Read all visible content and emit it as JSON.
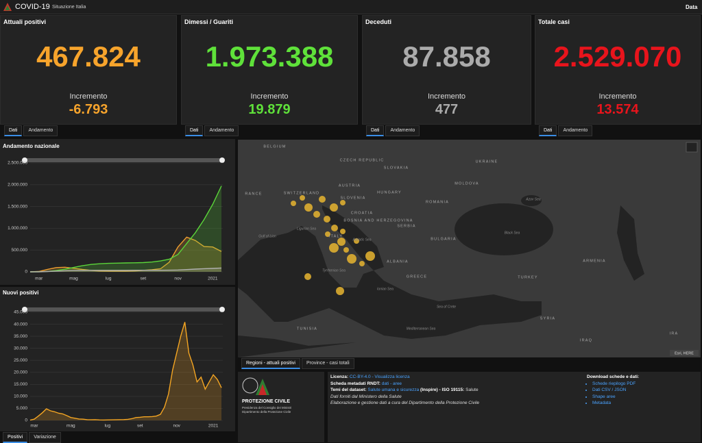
{
  "header": {
    "title": "COVID-19",
    "subtitle": "Situazione Italia",
    "date_label": "Data"
  },
  "cards": [
    {
      "title": "Attuali positivi",
      "value": "467.824",
      "increment_label": "Incremento",
      "increment": "-6.793",
      "color": "#f7a42c",
      "tabs": [
        "Dati",
        "Andamento"
      ]
    },
    {
      "title": "Dimessi / Guariti",
      "value": "1.973.388",
      "increment_label": "Incremento",
      "increment": "19.879",
      "color": "#5fe13a",
      "tabs": [
        "Dati",
        "Andamento"
      ]
    },
    {
      "title": "Deceduti",
      "value": "87.858",
      "increment_label": "Incremento",
      "increment": "477",
      "color": "#ababab",
      "tabs": [
        "Dati",
        "Andamento"
      ]
    },
    {
      "title": "Totale casi",
      "value": "2.529.070",
      "increment_label": "Incremento",
      "increment": "13.574",
      "color": "#e8141c",
      "tabs": [
        "Dati",
        "Andamento"
      ]
    }
  ],
  "chart_data": [
    {
      "type": "area",
      "title": "Andamento nazionale",
      "categories": [
        null,
        "mar",
        null,
        null,
        null,
        "mag",
        null,
        null,
        null,
        "lug",
        null,
        null,
        null,
        "set",
        null,
        null,
        null,
        "nov",
        null,
        null,
        null,
        "2021",
        null
      ],
      "series": [
        {
          "color": "#f0a030",
          "values": [
            200,
            8000,
            57000,
            98000,
            106000,
            82000,
            55000,
            33000,
            17000,
            13000,
            12500,
            13000,
            19000,
            34000,
            48000,
            70000,
            222000,
            573000,
            797000,
            720000,
            580000,
            570000,
            467824
          ]
        },
        {
          "color": "#5bd63a",
          "values": [
            0,
            1000,
            10000,
            30000,
            60000,
            100000,
            140000,
            170000,
            185000,
            195000,
            200000,
            205000,
            207000,
            212000,
            225000,
            250000,
            290000,
            400000,
            650000,
            900000,
            1200000,
            1550000,
            1973388
          ]
        },
        {
          "color": "#b0b0b0",
          "values": [
            7,
            600,
            7500,
            18000,
            25000,
            30000,
            32800,
            34000,
            34700,
            35000,
            35100,
            35200,
            35400,
            35700,
            36000,
            36500,
            37500,
            42000,
            52000,
            63000,
            72000,
            79000,
            87858
          ]
        }
      ],
      "ylim": [
        0,
        2500000
      ],
      "yticks": [
        0,
        {
          "value": 500000,
          "label": "500.000"
        },
        {
          "value": 1000000,
          "label": "1.000.000"
        },
        {
          "value": 1500000,
          "label": "1.500.000"
        },
        {
          "value": 2000000,
          "label": "2.000.000"
        },
        {
          "value": 2500000,
          "label": "2.500.000"
        }
      ],
      "grid": true
    },
    {
      "type": "area",
      "title": "Nuovi positivi",
      "categories": [
        null,
        "mar",
        null,
        null,
        null,
        null,
        null,
        null,
        null,
        null,
        "mag",
        null,
        null,
        null,
        null,
        null,
        null,
        null,
        null,
        "lug",
        null,
        null,
        null,
        null,
        null,
        null,
        null,
        "set",
        null,
        null,
        null,
        null,
        null,
        null,
        null,
        null,
        "nov",
        null,
        null,
        null,
        null,
        null,
        null,
        null,
        null,
        "2021",
        null,
        null
      ],
      "series": [
        {
          "color": "#f5a623",
          "values": [
            100,
            500,
            1800,
            3200,
            4800,
            4000,
            3600,
            3000,
            2700,
            2000,
            1200,
            900,
            600,
            500,
            300,
            250,
            300,
            200,
            180,
            200,
            230,
            250,
            300,
            350,
            450,
            700,
            1200,
            1300,
            1500,
            1500,
            1600,
            1800,
            2500,
            5500,
            11000,
            21000,
            28000,
            35000,
            40900,
            28000,
            23000,
            16000,
            18000,
            13000,
            16000,
            19000,
            17000,
            13574
          ]
        }
      ],
      "ylim": [
        0,
        45000
      ],
      "yticks": [
        0,
        {
          "value": 5000,
          "label": "5.000"
        },
        {
          "value": 10000,
          "label": "10.000"
        },
        {
          "value": 15000,
          "label": "15.000"
        },
        {
          "value": 20000,
          "label": "20.000"
        },
        {
          "value": 25000,
          "label": "25.000"
        },
        {
          "value": 30000,
          "label": "30.000"
        },
        {
          "value": 35000,
          "label": "35.000"
        },
        {
          "value": 40000,
          "label": "40.000"
        },
        {
          "value": 45000,
          "label": "45.000"
        }
      ],
      "grid": true,
      "tabs": [
        "Positivi",
        "Variazione"
      ]
    }
  ],
  "map": {
    "labels": [
      "BELGIUM",
      "CZECH REPUBLIC",
      "SLOVAKIA",
      "UKRAINE",
      "MOLDOVA",
      "SWITZERLAND",
      "AUSTRIA",
      "HUNGARY",
      "SLOVENIA",
      "ROMANIA",
      "CROATIA",
      "BOSNIA AND HERZEGOVINA",
      "SERBIA",
      "BULGARIA",
      "ALBANIA",
      "GREECE",
      "TURKEY",
      "ARMENIA",
      "SYRIA",
      "IRAQ",
      "TUNISIA",
      "RANCE",
      "ITALY",
      "Azov Sea",
      "Black Sea",
      "Ligurian Sea",
      "Gulf of Lion",
      "Adriatic Sea",
      "Tyrrhenian Sea",
      "Ionian Sea",
      "Sea of Crete",
      "Mediterranean Sea",
      "IRA"
    ],
    "attribution": "Esri, HERE",
    "tabs": [
      "Regioni - attuali positivi",
      "Province - casi totali"
    ]
  },
  "logo": {
    "name": "PROTEZIONE CIVILE",
    "line1": "Presidenza del Consiglio dei Ministri",
    "line2": "Dipartimento della Protezione Civile"
  },
  "info": [
    [
      {
        "text": "Licenza: ",
        "style": "bold"
      },
      {
        "text": "CC-BY-4.0 - Visualizza licenza",
        "style": "link"
      }
    ],
    [
      {
        "text": "Scheda metadati RNDT: ",
        "style": "bold"
      },
      {
        "text": "dati - aree",
        "style": "link"
      }
    ],
    [
      {
        "text": "Temi del dataset: ",
        "style": "bold"
      },
      {
        "text": "Salute umana e sicurezza",
        "style": "link"
      },
      {
        "text": " (Inspire) - ISO 19115: ",
        "style": "bold"
      },
      {
        "text": "Salute",
        "style": "plain"
      }
    ],
    [
      {
        "text": "Dati forniti dal Ministero della Salute",
        "style": "italic"
      }
    ],
    [
      {
        "text": "Elaborazione e gestione dati a cura del Dipartimento della Protezione Civile",
        "style": "italic"
      }
    ]
  ],
  "downloads": {
    "title": "Download schede e dati:",
    "items": [
      "Schede riepilogo PDF",
      "Dati CSV / JSON",
      "Shape aree",
      "Metadata"
    ]
  }
}
